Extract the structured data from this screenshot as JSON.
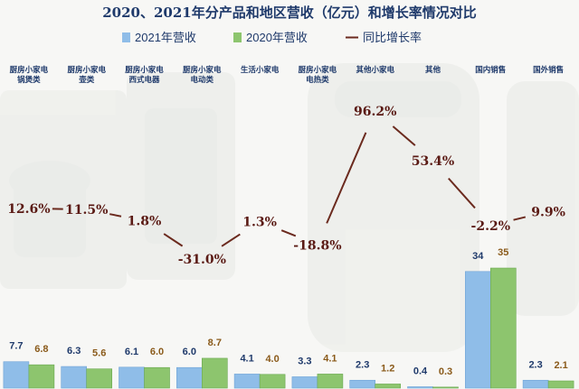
{
  "chart_data": {
    "type": "bar",
    "title": "2020、2021年分产品和地区营收（亿元）和增长率情况对比",
    "categories": [
      [
        "厨房小家电",
        "锅煲类"
      ],
      [
        "厨房小家电",
        "壶类"
      ],
      [
        "厨房小家电",
        "西式电器"
      ],
      [
        "厨房小家电",
        "电动类"
      ],
      [
        "生活小家电"
      ],
      [
        "厨房小家电",
        "电热类"
      ],
      [
        "其他小家电"
      ],
      [
        "其他"
      ],
      [
        "国内销售"
      ],
      [
        "国外销售"
      ]
    ],
    "series": [
      {
        "name": "2021年营收",
        "type": "bar",
        "color": "#8fbde8",
        "values": [
          7.7,
          6.3,
          6.1,
          6.0,
          4.1,
          3.3,
          2.3,
          0.4,
          34,
          2.3
        ],
        "labels": [
          "7.7",
          "6.3",
          "6.1",
          "6.0",
          "4.1",
          "3.3",
          "2.3",
          "0.4",
          "34",
          "2.3"
        ]
      },
      {
        "name": "2020年营收",
        "type": "bar",
        "color": "#8dc56e",
        "values": [
          6.8,
          5.6,
          6.0,
          8.7,
          4.0,
          4.1,
          1.2,
          0.3,
          35,
          2.1
        ],
        "labels": [
          "6.8",
          "5.6",
          "6.0",
          "8.7",
          "4.0",
          "4.1",
          "1.2",
          "0.3",
          "35",
          "2.1"
        ]
      },
      {
        "name": "同比增长率",
        "type": "line",
        "color": "#6b2a1e",
        "values": [
          12.6,
          11.5,
          1.8,
          -31.0,
          1.3,
          -18.8,
          96.2,
          53.4,
          -2.2,
          9.9
        ],
        "labels": [
          "12.6%",
          "11.5%",
          "1.8%",
          "-31.0%",
          "1.3%",
          "-18.8%",
          "96.2%",
          "53.4%",
          "-2.2%",
          "9.9%"
        ]
      }
    ],
    "legend": "top-center",
    "grid": false
  }
}
